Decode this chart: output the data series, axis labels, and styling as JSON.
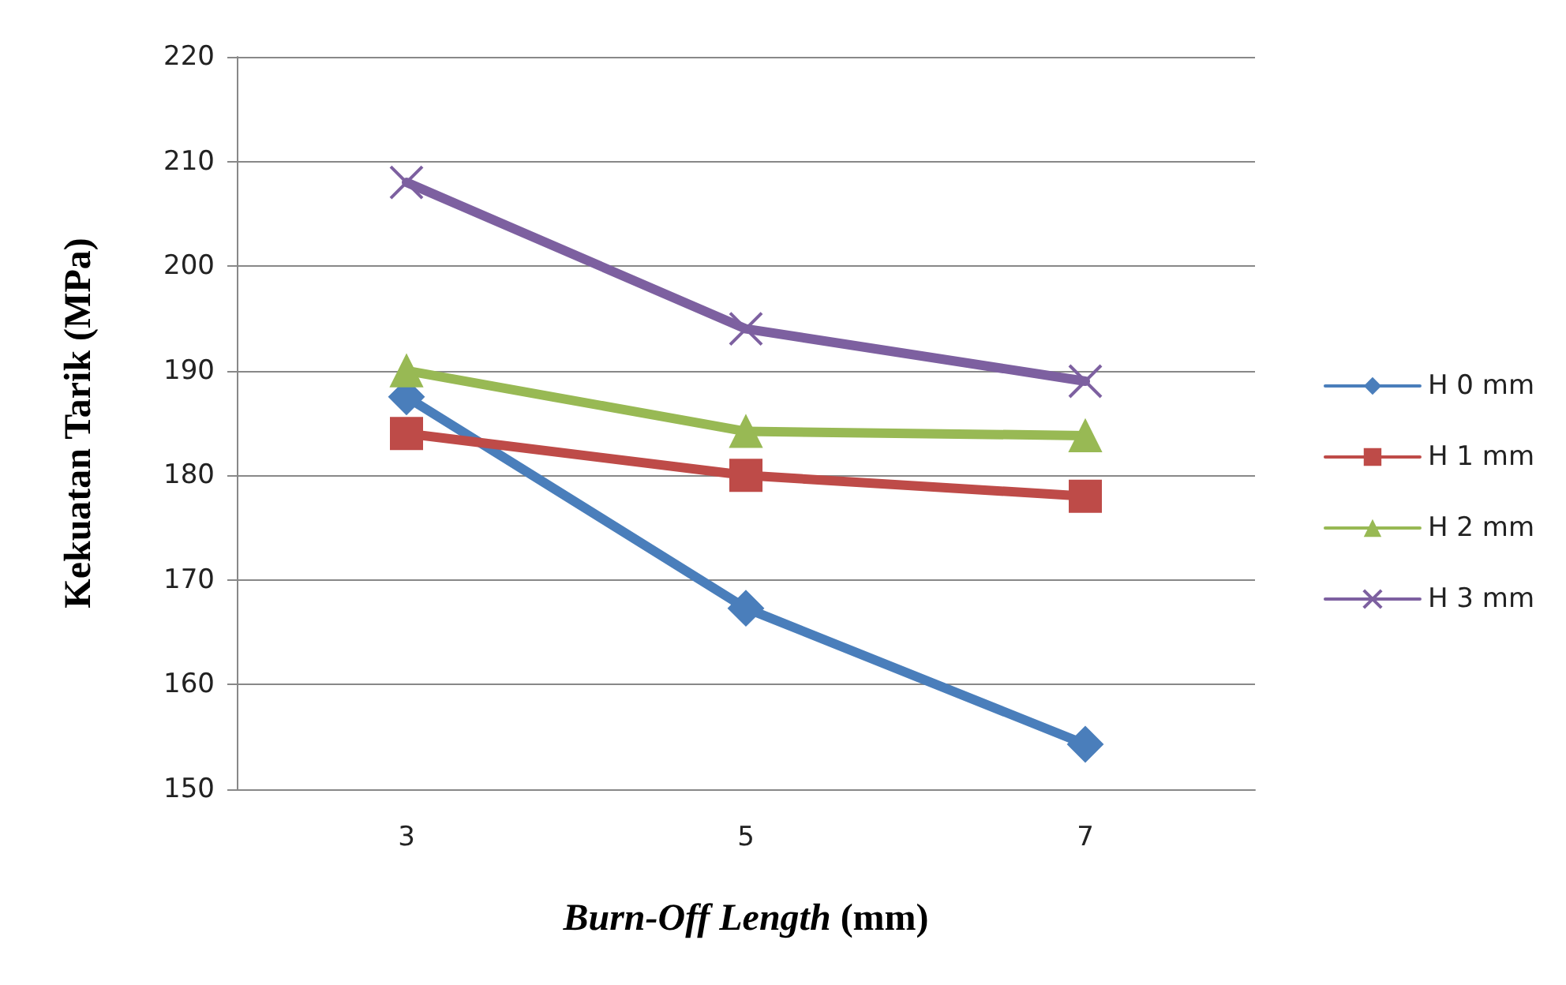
{
  "chart_data": {
    "type": "line",
    "xlabel": "Burn-Off Length (mm)",
    "ylabel": "Kekuatan Tarik (MPa)",
    "categories": [
      "3",
      "5",
      "7"
    ],
    "series": [
      {
        "name": "H 0 mm",
        "color": "#4a7ebb",
        "marker": "diamond",
        "values": [
          187.5,
          167.3,
          154.3
        ]
      },
      {
        "name": "H 1 mm",
        "color": "#be4b48",
        "marker": "square",
        "values": [
          184,
          180,
          178
        ]
      },
      {
        "name": "H 2 mm",
        "color": "#98b954",
        "marker": "triangle",
        "values": [
          190,
          184.2,
          183.8
        ]
      },
      {
        "name": "H 3 mm",
        "color": "#7d60a0",
        "marker": "cross",
        "values": [
          208,
          194,
          189
        ]
      }
    ],
    "ylim": [
      150,
      220
    ],
    "yticks": [
      150,
      160,
      170,
      180,
      190,
      200,
      210,
      220
    ],
    "grid": "y",
    "legend": "right",
    "line_style": "solid"
  }
}
